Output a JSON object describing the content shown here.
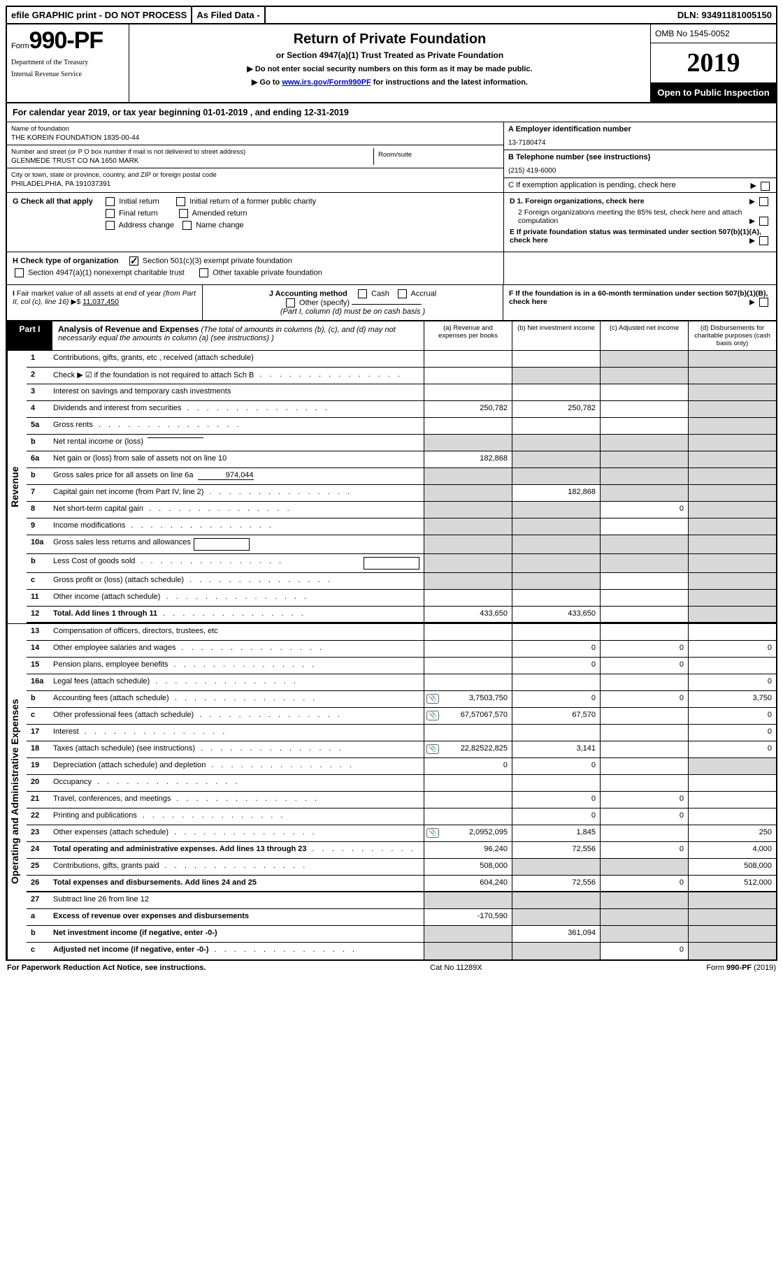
{
  "topbar": {
    "left": "efile GRAPHIC print - DO NOT PROCESS",
    "mid": "As Filed Data -",
    "right": "DLN: 93491181005150"
  },
  "header": {
    "form_prefix": "Form",
    "form_number": "990-PF",
    "dept1": "Department of the Treasury",
    "dept2": "Internal Revenue Service",
    "title": "Return of Private Foundation",
    "subtitle": "or Section 4947(a)(1) Trust Treated as Private Foundation",
    "note1": "▶ Do not enter social security numbers on this form as it may be made public.",
    "note2_pre": "▶ Go to ",
    "note2_link": "www.irs.gov/Form990PF",
    "note2_post": " for instructions and the latest information.",
    "omb": "OMB No 1545-0052",
    "year": "2019",
    "inspect": "Open to Public Inspection"
  },
  "calendar": "For calendar year 2019, or tax year beginning 01-01-2019             , and ending 12-31-2019",
  "entity": {
    "name_label": "Name of foundation",
    "name": "THE KOREIN FOUNDATION 1835-00-44",
    "street_label": "Number and street (or P O  box number if mail is not delivered to street address)",
    "street": "GLENMEDE TRUST CO NA 1650 MARK",
    "room_label": "Room/suite",
    "city_label": "City or town, state or province, country, and ZIP or foreign postal code",
    "city": "PHILADELPHIA, PA  191037391",
    "a_label": "A Employer identification number",
    "a_value": "13-7180474",
    "b_label": "B Telephone number (see instructions)",
    "b_value": "(215) 419-6000",
    "c_label": "C  If exemption application is pending, check here"
  },
  "g": {
    "label": "G Check all that apply",
    "opt1": "Initial return",
    "opt2": "Initial return of a former public charity",
    "opt3": "Final return",
    "opt4": "Amended return",
    "opt5": "Address change",
    "opt6": "Name change",
    "d1": "D 1. Foreign organizations, check here",
    "d2": "2  Foreign organizations meeting the 85% test, check here and attach computation",
    "e": "E  If private foundation status was terminated under section 507(b)(1)(A), check here"
  },
  "h": {
    "label": "H Check type of organization",
    "opt1": "Section 501(c)(3) exempt private foundation",
    "opt2": "Section 4947(a)(1) nonexempt charitable trust",
    "opt3": "Other taxable private foundation"
  },
  "i": {
    "label": "I Fair market value of all assets at end of year (from Part II, col  (c), line 16) ▶$",
    "value": "11,037,450",
    "j_label": "J Accounting method",
    "j_cash": "Cash",
    "j_accrual": "Accrual",
    "j_other": "Other (specify)",
    "j_note": "(Part I, column (d) must be on cash basis )",
    "f": "F  If the foundation is in a 60-month termination under section 507(b)(1)(B), check here"
  },
  "part1": {
    "badge": "Part I",
    "title": "Analysis of Revenue and Expenses",
    "title_note": " (The total of amounts in columns (b), (c), and (d) may not necessarily equal the amounts in column (a) (see instructions) )",
    "col_a": "(a)   Revenue and expenses per books",
    "col_b": "(b)  Net investment income",
    "col_c": "(c)  Adjusted net income",
    "col_d": "(d)  Disbursements for charitable purposes (cash basis only)"
  },
  "side_labels": {
    "revenue": "Revenue",
    "expenses": "Operating and Administrative Expenses"
  },
  "rows": [
    {
      "num": "1",
      "desc": "Contributions, gifts, grants, etc , received (attach schedule)",
      "a": "",
      "b": "",
      "c_grey": true,
      "d_grey": true
    },
    {
      "num": "2",
      "desc": "Check ▶ ☑ if the foundation is not required to attach Sch  B",
      "dots": true,
      "a": "",
      "b": "",
      "c_grey": true,
      "d_grey": true,
      "all_grey": true
    },
    {
      "num": "3",
      "desc": "Interest on savings and temporary cash investments",
      "a": "",
      "b": "",
      "c": "",
      "d_grey": true
    },
    {
      "num": "4",
      "desc": "Dividends and interest from securities",
      "dots": true,
      "a": "250,782",
      "b": "250,782",
      "c": "",
      "d_grey": true
    },
    {
      "num": "5a",
      "desc": "Gross rents",
      "dots": true,
      "a": "",
      "b": "",
      "c": "",
      "d_grey": true
    },
    {
      "num": "b",
      "desc": "Net rental income or (loss)",
      "inline": "",
      "a_grey": true,
      "b_grey": true,
      "c_grey": true,
      "d_grey": true
    },
    {
      "num": "6a",
      "desc": "Net gain or (loss) from sale of assets not on line 10",
      "a": "182,868",
      "b_grey": true,
      "c_grey": true,
      "d_grey": true
    },
    {
      "num": "b",
      "desc": "Gross sales price for all assets on line 6a",
      "inline": "974,044",
      "a_grey": true,
      "b_grey": true,
      "c_grey": true,
      "d_grey": true
    },
    {
      "num": "7",
      "desc": "Capital gain net income (from Part IV, line 2)",
      "dots": true,
      "a_grey": true,
      "b": "182,868",
      "c_grey": true,
      "d_grey": true
    },
    {
      "num": "8",
      "desc": "Net short-term capital gain",
      "dots": true,
      "a_grey": true,
      "b_grey": true,
      "c": "0",
      "d_grey": true
    },
    {
      "num": "9",
      "desc": "Income modifications",
      "dots": true,
      "a_grey": true,
      "b_grey": true,
      "c": "",
      "d_grey": true
    },
    {
      "num": "10a",
      "desc": "Gross sales less returns and allowances",
      "nested": true,
      "a_grey": true,
      "b_grey": true,
      "c_grey": true,
      "d_grey": true
    },
    {
      "num": "b",
      "desc": "Less  Cost of goods sold",
      "dots": true,
      "nested": true,
      "a_grey": true,
      "b_grey": true,
      "c_grey": true,
      "d_grey": true
    },
    {
      "num": "c",
      "desc": "Gross profit or (loss) (attach schedule)",
      "dots": true,
      "a_grey": true,
      "b_grey": true,
      "c": "",
      "d_grey": true
    },
    {
      "num": "11",
      "desc": "Other income (attach schedule)",
      "dots": true,
      "a": "",
      "b": "",
      "c": "",
      "d_grey": true
    },
    {
      "num": "12",
      "desc": "Total. Add lines 1 through 11",
      "dots": true,
      "bold": true,
      "a": "433,650",
      "b": "433,650",
      "c": "",
      "d_grey": true
    }
  ],
  "exp_rows": [
    {
      "num": "13",
      "desc": "Compensation of officers, directors, trustees, etc",
      "a": "",
      "b": "",
      "c": "",
      "d": ""
    },
    {
      "num": "14",
      "desc": "Other employee salaries and wages",
      "dots": true,
      "a": "",
      "b": "0",
      "c": "0",
      "d": "0"
    },
    {
      "num": "15",
      "desc": "Pension plans, employee benefits",
      "dots": true,
      "a": "",
      "b": "0",
      "c": "0",
      "d": ""
    },
    {
      "num": "16a",
      "desc": "Legal fees (attach schedule)",
      "dots": true,
      "a": "",
      "b": "",
      "c": "",
      "d": "0"
    },
    {
      "num": "b",
      "desc": "Accounting fees (attach schedule)",
      "dots": true,
      "icon": true,
      "a": "3,750",
      "b": "0",
      "c": "0",
      "d": "3,750"
    },
    {
      "num": "c",
      "desc": "Other professional fees (attach schedule)",
      "dots": true,
      "icon": true,
      "a": "67,570",
      "b": "67,570",
      "c": "",
      "d": "0"
    },
    {
      "num": "17",
      "desc": "Interest",
      "dots": true,
      "a": "",
      "b": "",
      "c": "",
      "d": "0"
    },
    {
      "num": "18",
      "desc": "Taxes (attach schedule) (see instructions)",
      "dots": true,
      "icon": true,
      "a": "22,825",
      "b": "3,141",
      "c": "",
      "d": "0"
    },
    {
      "num": "19",
      "desc": "Depreciation (attach schedule) and depletion",
      "dots": true,
      "a": "0",
      "b": "0",
      "c": "",
      "d_grey": true
    },
    {
      "num": "20",
      "desc": "Occupancy",
      "dots": true,
      "a": "",
      "b": "",
      "c": "",
      "d": ""
    },
    {
      "num": "21",
      "desc": "Travel, conferences, and meetings",
      "dots": true,
      "a": "",
      "b": "0",
      "c": "0",
      "d": ""
    },
    {
      "num": "22",
      "desc": "Printing and publications",
      "dots": true,
      "a": "",
      "b": "0",
      "c": "0",
      "d": ""
    },
    {
      "num": "23",
      "desc": "Other expenses (attach schedule)",
      "dots": true,
      "icon": true,
      "a": "2,095",
      "b": "1,845",
      "c": "",
      "d": "250"
    },
    {
      "num": "24",
      "desc": "Total operating and administrative expenses. Add lines 13 through 23",
      "dots": true,
      "bold": true,
      "a": "96,240",
      "b": "72,556",
      "c": "0",
      "d": "4,000"
    },
    {
      "num": "25",
      "desc": "Contributions, gifts, grants paid",
      "dots": true,
      "a": "508,000",
      "b_grey": true,
      "c_grey": true,
      "d": "508,000"
    },
    {
      "num": "26",
      "desc": "Total expenses and disbursements. Add lines 24 and 25",
      "bold": true,
      "a": "604,240",
      "b": "72,556",
      "c": "0",
      "d": "512,000"
    },
    {
      "num": "27",
      "desc": "Subtract line 26 from line 12",
      "a_grey": true,
      "b_grey": true,
      "c_grey": true,
      "d_grey": true
    },
    {
      "num": "a",
      "desc": "Excess of revenue over expenses and disbursements",
      "bold": true,
      "a": "-170,590",
      "b_grey": true,
      "c_grey": true,
      "d_grey": true
    },
    {
      "num": "b",
      "desc": "Net investment income (if negative, enter -0-)",
      "bold": true,
      "a_grey": true,
      "b": "361,094",
      "c_grey": true,
      "d_grey": true
    },
    {
      "num": "c",
      "desc": "Adjusted net income (if negative, enter -0-)",
      "bold": true,
      "dots": true,
      "a_grey": true,
      "b_grey": true,
      "c": "0",
      "d_grey": true
    }
  ],
  "footer": {
    "left": "For Paperwork Reduction Act Notice, see instructions.",
    "mid": "Cat No 11289X",
    "right": "Form 990-PF (2019)",
    "right_bold": "990-PF"
  }
}
